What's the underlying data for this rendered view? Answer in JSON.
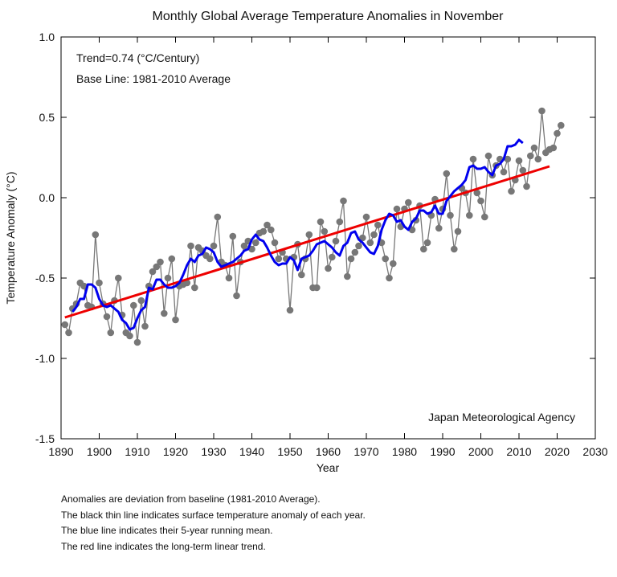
{
  "chart_data": {
    "type": "line",
    "title": "Monthly Global Average Temperature Anomalies in November",
    "xlabel": "Year",
    "ylabel": "Temperature Anomaly (°C)",
    "xlim": [
      1890,
      2030
    ],
    "ylim": [
      -1.5,
      1.0
    ],
    "x_ticks": [
      "1890",
      "1900",
      "1910",
      "1920",
      "1930",
      "1940",
      "1950",
      "1960",
      "1970",
      "1980",
      "1990",
      "2000",
      "2010",
      "2020",
      "2030"
    ],
    "y_ticks": [
      "1.0",
      "0.5",
      "0.0",
      "-0.5",
      "-1.0",
      "-1.5"
    ],
    "grid": false,
    "annotations": {
      "trend": "Trend=0.74 (°C/Century)",
      "baseline": "Base Line: 1981-2010 Average",
      "source": "Japan Meteorological Agency"
    },
    "colors": {
      "annual": "#777777",
      "running_mean": "#0000ee",
      "trend": "#ee0000"
    },
    "annual": {
      "start_year": 1891,
      "values": [
        -0.79,
        -0.84,
        -0.69,
        -0.66,
        -0.53,
        -0.55,
        -0.67,
        -0.68,
        -0.23,
        -0.53,
        -0.66,
        -0.74,
        -0.84,
        -0.64,
        -0.5,
        -0.73,
        -0.84,
        -0.86,
        -0.67,
        -0.9,
        -0.64,
        -0.8,
        -0.55,
        -0.46,
        -0.43,
        -0.4,
        -0.72,
        -0.5,
        -0.38,
        -0.76,
        -0.55,
        -0.54,
        -0.53,
        -0.3,
        -0.56,
        -0.31,
        -0.33,
        -0.36,
        -0.38,
        -0.3,
        -0.12,
        -0.4,
        -0.42,
        -0.5,
        -0.24,
        -0.61,
        -0.4,
        -0.3,
        -0.27,
        -0.32,
        -0.28,
        -0.22,
        -0.21,
        -0.17,
        -0.2,
        -0.28,
        -0.38,
        -0.34,
        -0.38,
        -0.7,
        -0.37,
        -0.29,
        -0.48,
        -0.38,
        -0.23,
        -0.56,
        -0.56,
        -0.15,
        -0.21,
        -0.44,
        -0.37,
        -0.27,
        -0.15,
        -0.02,
        -0.49,
        -0.38,
        -0.34,
        -0.3,
        -0.25,
        -0.12,
        -0.28,
        -0.23,
        -0.17,
        -0.28,
        -0.38,
        -0.5,
        -0.41,
        -0.07,
        -0.18,
        -0.07,
        -0.03,
        -0.2,
        -0.14,
        -0.05,
        -0.32,
        -0.28,
        -0.11,
        -0.01,
        -0.19,
        -0.07,
        0.15,
        -0.11,
        -0.32,
        -0.21,
        0.06,
        0.03,
        -0.11,
        0.24,
        0.03,
        -0.02,
        -0.12,
        0.26,
        0.14,
        0.2,
        0.24,
        0.16,
        0.24,
        0.04,
        0.11,
        0.23,
        0.17,
        0.07,
        0.26,
        0.31,
        0.24,
        0.54,
        0.28,
        0.3,
        0.31,
        0.4,
        0.45
      ]
    },
    "running_mean": {
      "start_year": 1893,
      "values": [
        -0.71,
        -0.68,
        -0.63,
        -0.63,
        -0.54,
        -0.54,
        -0.56,
        -0.63,
        -0.67,
        -0.68,
        -0.67,
        -0.69,
        -0.71,
        -0.76,
        -0.78,
        -0.82,
        -0.81,
        -0.75,
        -0.7,
        -0.68,
        -0.56,
        -0.57,
        -0.51,
        -0.51,
        -0.54,
        -0.56,
        -0.56,
        -0.55,
        -0.53,
        -0.48,
        -0.42,
        -0.38,
        -0.4,
        -0.36,
        -0.35,
        -0.31,
        -0.32,
        -0.34,
        -0.4,
        -0.43,
        -0.42,
        -0.41,
        -0.4,
        -0.38,
        -0.36,
        -0.33,
        -0.32,
        -0.26,
        -0.23,
        -0.26,
        -0.27,
        -0.31,
        -0.36,
        -0.4,
        -0.42,
        -0.41,
        -0.41,
        -0.37,
        -0.39,
        -0.45,
        -0.38,
        -0.37,
        -0.36,
        -0.33,
        -0.29,
        -0.28,
        -0.27,
        -0.29,
        -0.31,
        -0.34,
        -0.36,
        -0.3,
        -0.28,
        -0.22,
        -0.21,
        -0.26,
        -0.28,
        -0.31,
        -0.34,
        -0.35,
        -0.3,
        -0.2,
        -0.14,
        -0.1,
        -0.11,
        -0.15,
        -0.14,
        -0.18,
        -0.2,
        -0.15,
        -0.13,
        -0.08,
        -0.08,
        -0.1,
        -0.09,
        -0.05,
        -0.1,
        -0.1,
        -0.02,
        0.01,
        0.04,
        0.06,
        0.08,
        0.11,
        0.19,
        0.2,
        0.18,
        0.18,
        0.19,
        0.16,
        0.14,
        0.2,
        0.21,
        0.24,
        0.32,
        0.32,
        0.33,
        0.36,
        0.34
      ]
    },
    "trend_line": {
      "x": [
        1891,
        2018
      ],
      "y": [
        -0.745,
        0.195
      ]
    }
  },
  "footnotes": [
    "Anomalies are deviation from baseline (1981-2010 Average).",
    "The black thin line indicates surface temperature anomaly of each year.",
    "The blue line indicates their 5-year running mean.",
    "The red line indicates the long-term linear trend."
  ]
}
